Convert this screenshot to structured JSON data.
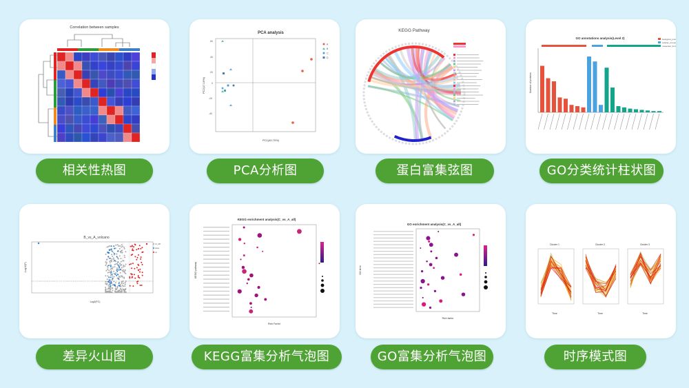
{
  "cards": [
    {
      "label": "相关性热图",
      "chart_title": "Correlation between samples"
    },
    {
      "label": "PCA分析图",
      "chart_title": "PCA analysis",
      "xlabel": "PC1(40.70%)",
      "ylabel": "PC2(17.19%)"
    },
    {
      "label": "蛋白富集弦图",
      "chart_title": "KEGG Pathway"
    },
    {
      "label": "GO分类统计柱状图",
      "chart_title": "GO annotations analysis(Level 2)",
      "ylabel": "Number of proteins",
      "legend": [
        "biological_process",
        "cellular_component",
        "molecular_function"
      ]
    },
    {
      "label": "差异火山图",
      "chart_title": "B_vs_A_volcano",
      "xlabel": "Log2(FC)",
      "ylabel": "-Log10(P)",
      "legend": [
        "no_diff",
        "down",
        "up"
      ]
    },
    {
      "label": "KEGG富集分析气泡图",
      "chart_title": "KEGG enrichment analysis(C_vs_A_all)",
      "xlabel": "Rich Factor",
      "ylabel": "KEGG pathway"
    },
    {
      "label": "GO富集分析气泡图",
      "chart_title": "GO enrichment analysis(C_vs_A_all)",
      "xlabel": "Rich factor",
      "ylabel": "GO term"
    },
    {
      "label": "时序模式图",
      "chart_title": "",
      "panels": [
        "Cluster 1",
        "Cluster 2",
        "Cluster 3"
      ],
      "xlabel": "Time",
      "ylabel": "Expression changes"
    }
  ],
  "colors": {
    "background": "#d8f1fa",
    "label_bg": "#4fa234",
    "label_text": "#ffffff"
  }
}
